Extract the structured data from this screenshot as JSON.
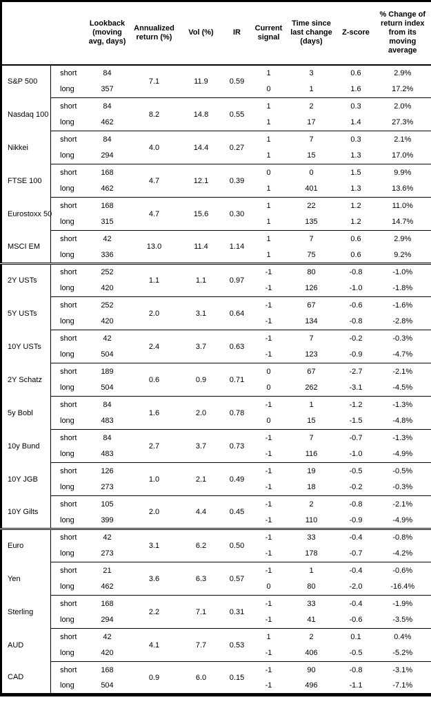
{
  "page": {
    "background_color": "#ffffff",
    "border_color": "#000000"
  },
  "table": {
    "columns": [
      {
        "id": "asset",
        "label": ""
      },
      {
        "id": "horizon",
        "label": ""
      },
      {
        "id": "lookback",
        "label": "Lookback\n(moving\navg, days)"
      },
      {
        "id": "annualized-return",
        "label": "Annualized\nreturn (%)"
      },
      {
        "id": "vol",
        "label": "Vol (%)"
      },
      {
        "id": "ir",
        "label": "IR"
      },
      {
        "id": "current-signal",
        "label": "Current\nsignal"
      },
      {
        "id": "time-since-last-change",
        "label": "Time since\nlast change\n(days)"
      },
      {
        "id": "z-score",
        "label": "Z-score"
      },
      {
        "id": "pct-change",
        "label": "% Change of\nreturn index\nfrom its\nmoving\naverage"
      }
    ],
    "row_labels": {
      "short": "short",
      "long": "long"
    },
    "sections": [
      {
        "id": "equities",
        "assets": [
          {
            "name": "S&P 500",
            "annualized_return": "7.1",
            "vol": "11.9",
            "ir": "0.59",
            "short": {
              "lookback": "84",
              "signal": "1",
              "days": "3",
              "zscore": "0.6",
              "pct": "2.9%"
            },
            "long": {
              "lookback": "357",
              "signal": "0",
              "days": "1",
              "zscore": "1.6",
              "pct": "17.2%"
            }
          },
          {
            "name": "Nasdaq 100",
            "annualized_return": "8.2",
            "vol": "14.8",
            "ir": "0.55",
            "short": {
              "lookback": "84",
              "signal": "1",
              "days": "2",
              "zscore": "0.3",
              "pct": "2.0%"
            },
            "long": {
              "lookback": "462",
              "signal": "1",
              "days": "17",
              "zscore": "1.4",
              "pct": "27.3%"
            }
          },
          {
            "name": "Nikkei",
            "annualized_return": "4.0",
            "vol": "14.4",
            "ir": "0.27",
            "short": {
              "lookback": "84",
              "signal": "1",
              "days": "7",
              "zscore": "0.3",
              "pct": "2.1%"
            },
            "long": {
              "lookback": "294",
              "signal": "1",
              "days": "15",
              "zscore": "1.3",
              "pct": "17.0%"
            }
          },
          {
            "name": "FTSE 100",
            "annualized_return": "4.7",
            "vol": "12.1",
            "ir": "0.39",
            "short": {
              "lookback": "168",
              "signal": "0",
              "days": "0",
              "zscore": "1.5",
              "pct": "9.9%"
            },
            "long": {
              "lookback": "462",
              "signal": "1",
              "days": "401",
              "zscore": "1.3",
              "pct": "13.6%"
            }
          },
          {
            "name": "Eurostoxx 50",
            "annualized_return": "4.7",
            "vol": "15.6",
            "ir": "0.30",
            "short": {
              "lookback": "168",
              "signal": "1",
              "days": "22",
              "zscore": "1.2",
              "pct": "11.0%"
            },
            "long": {
              "lookback": "315",
              "signal": "1",
              "days": "135",
              "zscore": "1.2",
              "pct": "14.7%"
            }
          },
          {
            "name": "MSCI EM",
            "annualized_return": "13.0",
            "vol": "11.4",
            "ir": "1.14",
            "short": {
              "lookback": "42",
              "signal": "1",
              "days": "7",
              "zscore": "0.6",
              "pct": "2.9%"
            },
            "long": {
              "lookback": "336",
              "signal": "1",
              "days": "75",
              "zscore": "0.6",
              "pct": "9.2%"
            }
          }
        ]
      },
      {
        "id": "rates",
        "assets": [
          {
            "name": "2Y USTs",
            "annualized_return": "1.1",
            "vol": "1.1",
            "ir": "0.97",
            "short": {
              "lookback": "252",
              "signal": "-1",
              "days": "80",
              "zscore": "-0.8",
              "pct": "-1.0%"
            },
            "long": {
              "lookback": "420",
              "signal": "-1",
              "days": "126",
              "zscore": "-1.0",
              "pct": "-1.8%"
            }
          },
          {
            "name": "5Y USTs",
            "annualized_return": "2.0",
            "vol": "3.1",
            "ir": "0.64",
            "short": {
              "lookback": "252",
              "signal": "-1",
              "days": "67",
              "zscore": "-0.6",
              "pct": "-1.6%"
            },
            "long": {
              "lookback": "420",
              "signal": "-1",
              "days": "134",
              "zscore": "-0.8",
              "pct": "-2.8%"
            }
          },
          {
            "name": "10Y USTs",
            "annualized_return": "2.4",
            "vol": "3.7",
            "ir": "0.63",
            "short": {
              "lookback": "42",
              "signal": "-1",
              "days": "7",
              "zscore": "-0.2",
              "pct": "-0.3%"
            },
            "long": {
              "lookback": "504",
              "signal": "-1",
              "days": "123",
              "zscore": "-0.9",
              "pct": "-4.7%"
            }
          },
          {
            "name": "2Y Schatz",
            "annualized_return": "0.6",
            "vol": "0.9",
            "ir": "0.71",
            "short": {
              "lookback": "189",
              "signal": "0",
              "days": "67",
              "zscore": "-2.7",
              "pct": "-2.1%"
            },
            "long": {
              "lookback": "504",
              "signal": "0",
              "days": "262",
              "zscore": "-3.1",
              "pct": "-4.5%"
            }
          },
          {
            "name": "5y Bobl",
            "annualized_return": "1.6",
            "vol": "2.0",
            "ir": "0.78",
            "short": {
              "lookback": "84",
              "signal": "-1",
              "days": "1",
              "zscore": "-1.2",
              "pct": "-1.3%"
            },
            "long": {
              "lookback": "483",
              "signal": "0",
              "days": "15",
              "zscore": "-1.5",
              "pct": "-4.8%"
            }
          },
          {
            "name": "10y Bund",
            "annualized_return": "2.7",
            "vol": "3.7",
            "ir": "0.73",
            "short": {
              "lookback": "84",
              "signal": "-1",
              "days": "7",
              "zscore": "-0.7",
              "pct": "-1.3%"
            },
            "long": {
              "lookback": "483",
              "signal": "-1",
              "days": "116",
              "zscore": "-1.0",
              "pct": "-4.9%"
            }
          },
          {
            "name": "10Y JGB",
            "annualized_return": "1.0",
            "vol": "2.1",
            "ir": "0.49",
            "short": {
              "lookback": "126",
              "signal": "-1",
              "days": "19",
              "zscore": "-0.5",
              "pct": "-0.5%"
            },
            "long": {
              "lookback": "273",
              "signal": "-1",
              "days": "18",
              "zscore": "-0.2",
              "pct": "-0.3%"
            }
          },
          {
            "name": "10Y Gilts",
            "annualized_return": "2.0",
            "vol": "4.4",
            "ir": "0.45",
            "short": {
              "lookback": "105",
              "signal": "-1",
              "days": "2",
              "zscore": "-0.8",
              "pct": "-2.1%"
            },
            "long": {
              "lookback": "399",
              "signal": "-1",
              "days": "110",
              "zscore": "-0.9",
              "pct": "-4.9%"
            }
          }
        ]
      },
      {
        "id": "currencies",
        "assets": [
          {
            "name": "Euro",
            "annualized_return": "3.1",
            "vol": "6.2",
            "ir": "0.50",
            "short": {
              "lookback": "42",
              "signal": "-1",
              "days": "33",
              "zscore": "-0.4",
              "pct": "-0.8%"
            },
            "long": {
              "lookback": "273",
              "signal": "-1",
              "days": "178",
              "zscore": "-0.7",
              "pct": "-4.2%"
            }
          },
          {
            "name": "Yen",
            "annualized_return": "3.6",
            "vol": "6.3",
            "ir": "0.57",
            "short": {
              "lookback": "21",
              "signal": "-1",
              "days": "1",
              "zscore": "-0.4",
              "pct": "-0.6%"
            },
            "long": {
              "lookback": "462",
              "signal": "0",
              "days": "80",
              "zscore": "-2.0",
              "pct": "-16.4%"
            }
          },
          {
            "name": "Sterling",
            "annualized_return": "2.2",
            "vol": "7.1",
            "ir": "0.31",
            "short": {
              "lookback": "168",
              "signal": "-1",
              "days": "33",
              "zscore": "-0.4",
              "pct": "-1.9%"
            },
            "long": {
              "lookback": "294",
              "signal": "-1",
              "days": "41",
              "zscore": "-0.6",
              "pct": "-3.5%"
            }
          },
          {
            "name": "AUD",
            "annualized_return": "4.1",
            "vol": "7.7",
            "ir": "0.53",
            "short": {
              "lookback": "42",
              "signal": "1",
              "days": "2",
              "zscore": "0.1",
              "pct": "0.4%"
            },
            "long": {
              "lookback": "420",
              "signal": "-1",
              "days": "406",
              "zscore": "-0.5",
              "pct": "-5.2%"
            }
          },
          {
            "name": "CAD",
            "annualized_return": "0.9",
            "vol": "6.0",
            "ir": "0.15",
            "short": {
              "lookback": "168",
              "signal": "-1",
              "days": "90",
              "zscore": "-0.8",
              "pct": "-3.1%"
            },
            "long": {
              "lookback": "504",
              "signal": "-1",
              "days": "496",
              "zscore": "-1.1",
              "pct": "-7.1%"
            }
          }
        ]
      }
    ]
  }
}
